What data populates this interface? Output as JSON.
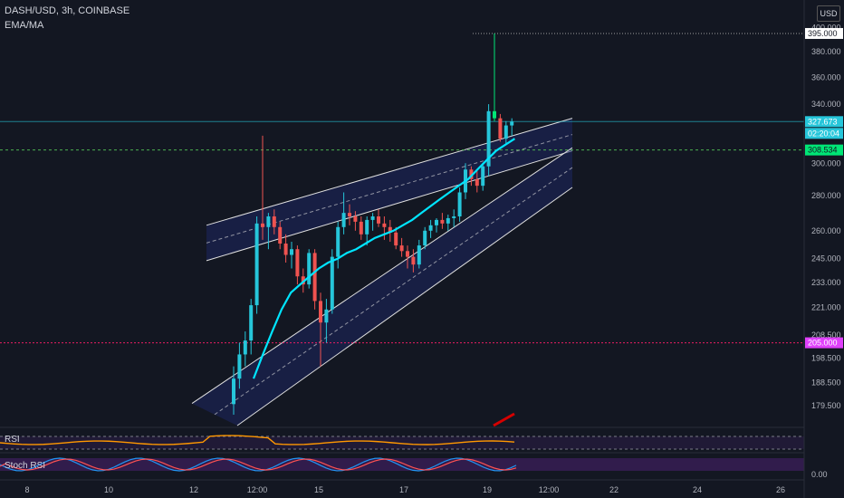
{
  "header": {
    "symbol_line": "DASH/USD, 3h, COINBASE",
    "indicator": "EMA/MA"
  },
  "currency_badge": "USD",
  "panes": {
    "rsi_label": "RSI",
    "stoch_label": "Stoch RSI",
    "stoch_zero": "0.00"
  },
  "colors": {
    "bg": "#131722",
    "up": "#26c6da",
    "down": "#ef5350",
    "ema": "#00e5ff",
    "channel": "#e0e0e0",
    "current": "#26c6da",
    "support": "#4caf50",
    "pink": "#e91e63"
  },
  "price_labels": {
    "high": "395.000",
    "current": "327.673",
    "countdown": "02:20:04",
    "green_line": "308.534",
    "pink_line": "205.000"
  },
  "chart_data": {
    "type": "candlestick",
    "title": "",
    "xlabel": "",
    "ylabel": "",
    "y_ticks": [
      "400.000",
      "380.000",
      "360.000",
      "340.000",
      "320.000",
      "300.000",
      "280.000",
      "260.000",
      "245.000",
      "233.000",
      "221.000",
      "208.500",
      "198.500",
      "188.500",
      "179.500"
    ],
    "x_ticks": [
      "8",
      "10",
      "12",
      "12:00",
      "15",
      "17",
      "19",
      "12:00",
      "22",
      "24",
      "26"
    ],
    "y_scale": "log",
    "ylim": [
      172,
      420
    ],
    "grid": false,
    "legend": "none",
    "horizontal_levels": [
      395,
      327.673,
      308.534,
      205
    ],
    "candles": [
      [
        180,
        195,
        176,
        190
      ],
      [
        190,
        205,
        186,
        200
      ],
      [
        200,
        210,
        195,
        206
      ],
      [
        206,
        225,
        200,
        222
      ],
      [
        222,
        268,
        218,
        264
      ],
      [
        264,
        318,
        255,
        262
      ],
      [
        262,
        270,
        250,
        268
      ],
      [
        268,
        272,
        258,
        262
      ],
      [
        262,
        265,
        250,
        253
      ],
      [
        253,
        258,
        243,
        247
      ],
      [
        247,
        254,
        240,
        250
      ],
      [
        250,
        252,
        232,
        236
      ],
      [
        236,
        240,
        228,
        232
      ],
      [
        232,
        250,
        230,
        248
      ],
      [
        248,
        250,
        220,
        224
      ],
      [
        224,
        228,
        195,
        214
      ],
      [
        214,
        225,
        205,
        220
      ],
      [
        220,
        250,
        218,
        246
      ],
      [
        246,
        265,
        240,
        262
      ],
      [
        262,
        282,
        258,
        270
      ],
      [
        270,
        275,
        263,
        268
      ],
      [
        268,
        271,
        260,
        265
      ],
      [
        265,
        268,
        255,
        258
      ],
      [
        258,
        268,
        252,
        266
      ],
      [
        266,
        270,
        260,
        268
      ],
      [
        268,
        272,
        262,
        264
      ],
      [
        264,
        268,
        255,
        262
      ],
      [
        262,
        266,
        254,
        259
      ],
      [
        259,
        262,
        250,
        252
      ],
      [
        252,
        256,
        246,
        249
      ],
      [
        249,
        252,
        240,
        246
      ],
      [
        246,
        250,
        238,
        242
      ],
      [
        242,
        255,
        240,
        252
      ],
      [
        252,
        262,
        250,
        260
      ],
      [
        260,
        266,
        256,
        263
      ],
      [
        263,
        267,
        259,
        266
      ],
      [
        266,
        270,
        261,
        264
      ],
      [
        264,
        269,
        260,
        267
      ],
      [
        267,
        272,
        262,
        268
      ],
      [
        268,
        285,
        265,
        282
      ],
      [
        282,
        300,
        278,
        296
      ],
      [
        296,
        298,
        286,
        290
      ],
      [
        290,
        295,
        282,
        286
      ],
      [
        286,
        300,
        283,
        298
      ],
      [
        298,
        340,
        292,
        335
      ],
      [
        335,
        395,
        328,
        330
      ],
      [
        330,
        333,
        314,
        316
      ],
      [
        316,
        328,
        312,
        325
      ],
      [
        325,
        330,
        318,
        327.673
      ]
    ],
    "ema": [
      190,
      200,
      210,
      220,
      228,
      232,
      236,
      240,
      243,
      245,
      248,
      250,
      253,
      256,
      258,
      260,
      263,
      266,
      270,
      274,
      278,
      282,
      286,
      290,
      296,
      302,
      308,
      312,
      316
    ],
    "channel_upper": {
      "from": [
        0,
        263
      ],
      "to": [
        1,
        330
      ]
    },
    "channel_lower": {
      "from": [
        0,
        244
      ],
      "to": [
        1,
        308
      ]
    },
    "rising_channel_top": {
      "from": [
        0,
        182
      ],
      "to": [
        1,
        310
      ]
    },
    "rising_channel_bot": {
      "from": [
        0,
        172
      ],
      "to": [
        1,
        285
      ]
    }
  }
}
